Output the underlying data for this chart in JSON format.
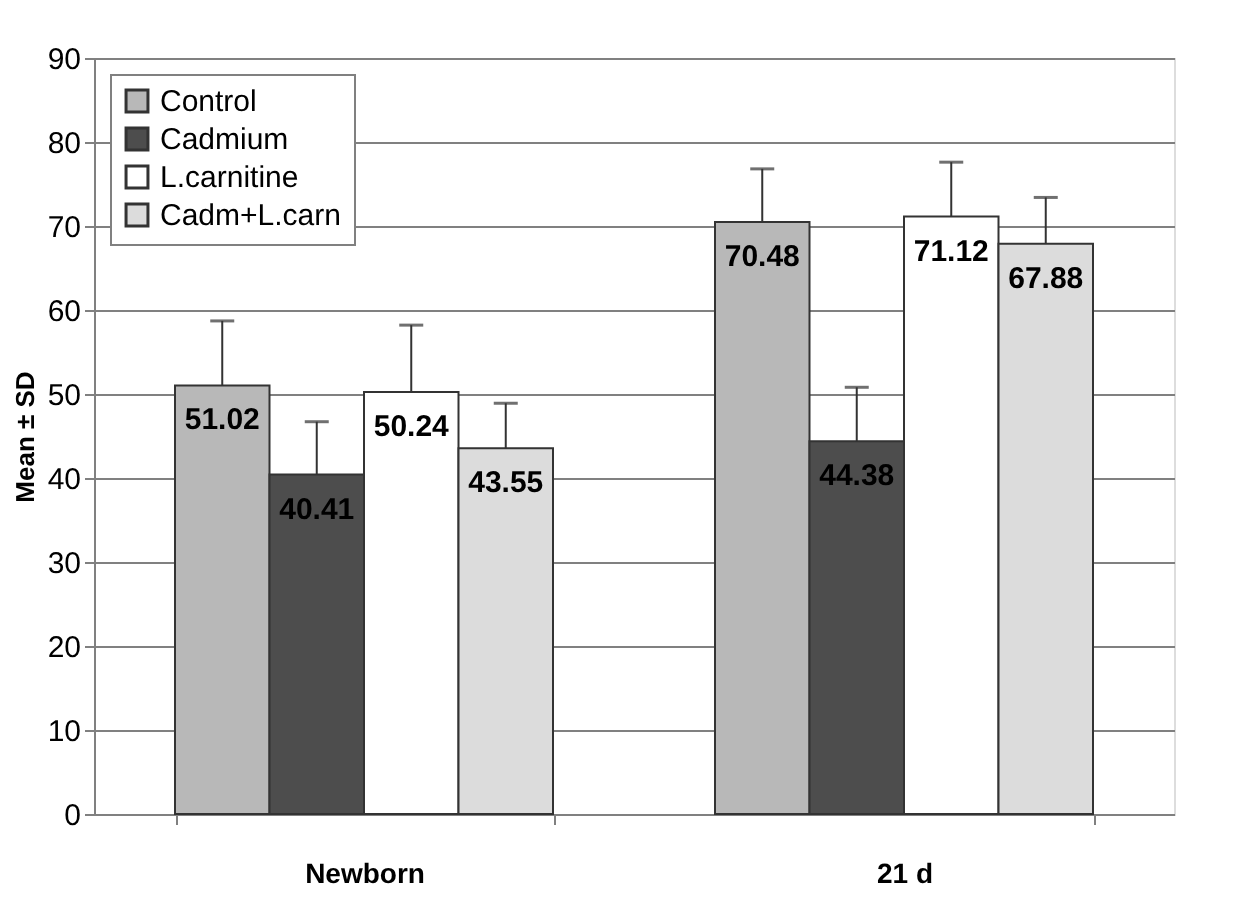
{
  "chart_data": {
    "type": "bar",
    "ylabel": "Mean ± SD",
    "categories": [
      "Newborn",
      "21 d"
    ],
    "series": [
      {
        "name": "Control",
        "color": "#b8b8b8",
        "values": [
          51.02,
          70.48
        ],
        "errors": [
          [
            51.02,
            58.7
          ],
          [
            70.48,
            76.8
          ]
        ]
      },
      {
        "name": "Cadmium",
        "color": "#4d4d4d",
        "values": [
          40.41,
          44.38
        ],
        "errors": [
          [
            40.41,
            46.7
          ],
          [
            44.38,
            50.8
          ]
        ]
      },
      {
        "name": "L.carnitine",
        "color": "#ffffff",
        "values": [
          50.24,
          71.12
        ],
        "errors": [
          [
            50.24,
            58.2
          ],
          [
            71.12,
            77.6
          ]
        ]
      },
      {
        "name": "Cadm+L.carn",
        "color": "#dcdcdc",
        "values": [
          43.55,
          67.88
        ],
        "errors": [
          [
            43.55,
            48.9
          ],
          [
            67.88,
            73.4
          ]
        ]
      }
    ],
    "ylim": [
      0,
      90
    ],
    "yticks": [
      0,
      10,
      20,
      30,
      40,
      50,
      60,
      70,
      80,
      90
    ],
    "grid": "y",
    "legend": "top left",
    "data_labels": true
  }
}
